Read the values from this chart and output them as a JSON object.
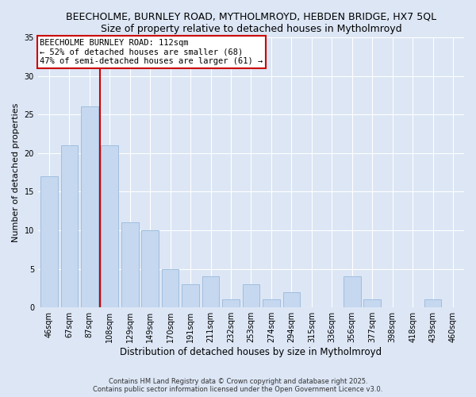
{
  "title": "BEECHOLME, BURNLEY ROAD, MYTHOLMROYD, HEBDEN BRIDGE, HX7 5QL",
  "subtitle": "Size of property relative to detached houses in Mytholmroyd",
  "xlabel": "Distribution of detached houses by size in Mytholmroyd",
  "ylabel": "Number of detached properties",
  "categories": [
    "46sqm",
    "67sqm",
    "87sqm",
    "108sqm",
    "129sqm",
    "149sqm",
    "170sqm",
    "191sqm",
    "211sqm",
    "232sqm",
    "253sqm",
    "274sqm",
    "294sqm",
    "315sqm",
    "336sqm",
    "356sqm",
    "377sqm",
    "398sqm",
    "418sqm",
    "439sqm",
    "460sqm"
  ],
  "values": [
    17,
    21,
    26,
    21,
    11,
    10,
    5,
    3,
    4,
    1,
    3,
    1,
    2,
    0,
    0,
    4,
    1,
    0,
    0,
    1,
    0
  ],
  "bar_color": "#c5d8f0",
  "bar_edge_color": "#a0bedd",
  "vline_color": "#cc0000",
  "vline_x": 2.5,
  "annotation_text": "BEECHOLME BURNLEY ROAD: 112sqm\n← 52% of detached houses are smaller (68)\n47% of semi-detached houses are larger (61) →",
  "annotation_box_color": "#ffffff",
  "annotation_box_edge_color": "#cc0000",
  "background_color": "#dce6f5",
  "plot_bg_color": "#dce6f5",
  "ylim": [
    0,
    35
  ],
  "yticks": [
    0,
    5,
    10,
    15,
    20,
    25,
    30,
    35
  ],
  "grid_color": "#ffffff",
  "footer_text": "Contains HM Land Registry data © Crown copyright and database right 2025.\nContains public sector information licensed under the Open Government Licence v3.0.",
  "title_fontsize": 9,
  "subtitle_fontsize": 8.5,
  "xlabel_fontsize": 8.5,
  "ylabel_fontsize": 8,
  "tick_fontsize": 7,
  "annotation_fontsize": 7.5,
  "footer_fontsize": 6
}
